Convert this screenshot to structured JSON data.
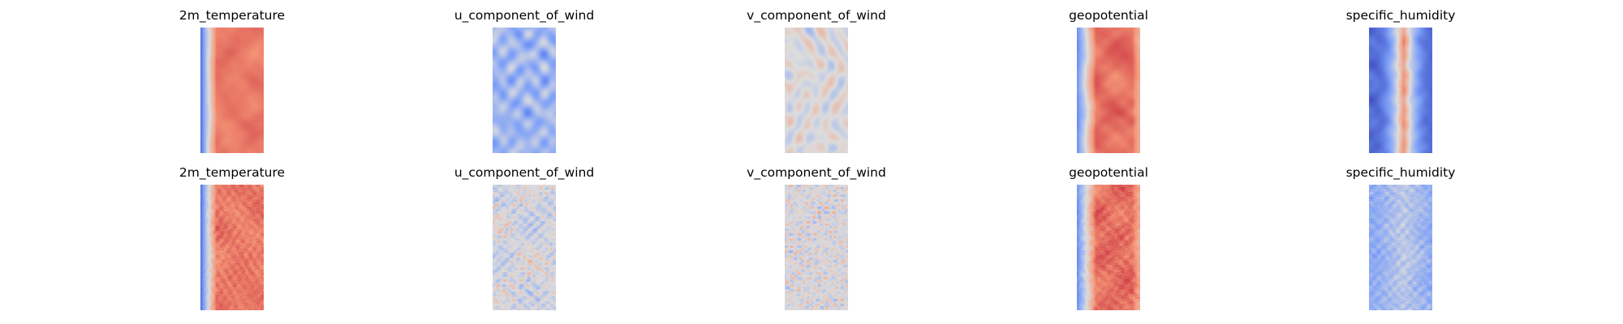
{
  "figure": {
    "background": "#ffffff",
    "colormap": "coolwarm"
  },
  "chart_data": [
    {
      "type": "heatmap",
      "title": "2m_temperature",
      "pattern": "temperature_smooth",
      "seed": 11
    },
    {
      "type": "heatmap",
      "title": "u_component_of_wind",
      "pattern": "wind_u_smooth",
      "seed": 23
    },
    {
      "type": "heatmap",
      "title": "v_component_of_wind",
      "pattern": "wind_v_smooth",
      "seed": 37
    },
    {
      "type": "heatmap",
      "title": "geopotential",
      "pattern": "geopotential_smooth",
      "seed": 41
    },
    {
      "type": "heatmap",
      "title": "specific_humidity",
      "pattern": "humidity_smooth",
      "seed": 53
    },
    {
      "type": "heatmap",
      "title": "2m_temperature",
      "pattern": "temperature_noisy",
      "seed": 67
    },
    {
      "type": "heatmap",
      "title": "u_component_of_wind",
      "pattern": "wind_u_noisy",
      "seed": 71
    },
    {
      "type": "heatmap",
      "title": "v_component_of_wind",
      "pattern": "wind_v_noisy",
      "seed": 83
    },
    {
      "type": "heatmap",
      "title": "geopotential",
      "pattern": "geopotential_noisy",
      "seed": 97
    },
    {
      "type": "heatmap",
      "title": "specific_humidity",
      "pattern": "humidity_noisy",
      "seed": 101
    }
  ]
}
